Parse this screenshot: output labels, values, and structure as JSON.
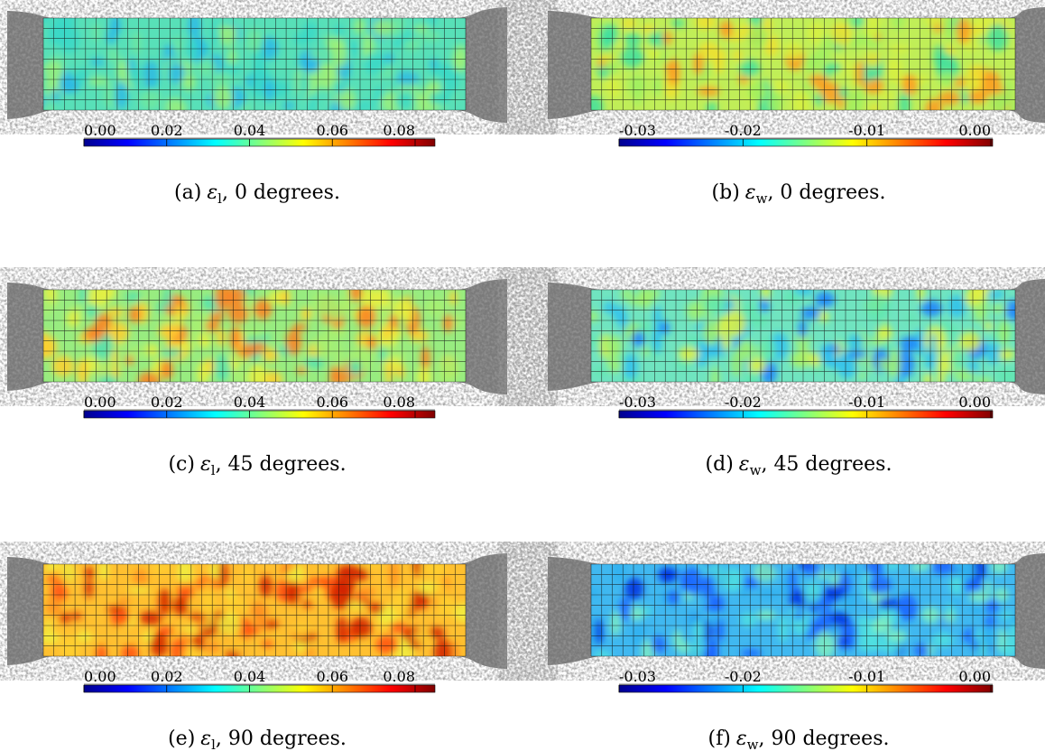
{
  "panels": [
    {
      "ticks": [
        "0.00",
        "0.02",
        "0.04",
        "0.06",
        "0.08"
      ],
      "caption": {
        "label": "(a)",
        "symbol": "ε",
        "subscript": "l",
        "text": ", 0 degrees."
      }
    },
    {
      "ticks": [
        "-0.03",
        "-0.02",
        "-0.01",
        "0.00"
      ],
      "caption": {
        "label": "(b)",
        "symbol": "ε",
        "subscript": "w",
        "text": ", 0 degrees."
      }
    },
    {
      "ticks": [
        "0.00",
        "0.02",
        "0.04",
        "0.06",
        "0.08"
      ],
      "caption": {
        "label": "(c)",
        "symbol": "ε",
        "subscript": "l",
        "text": ", 45 degrees."
      }
    },
    {
      "ticks": [
        "-0.03",
        "-0.02",
        "-0.01",
        "0.00"
      ],
      "caption": {
        "label": "(d)",
        "symbol": "ε",
        "subscript": "w",
        "text": ", 45 degrees."
      }
    },
    {
      "ticks": [
        "0.00",
        "0.02",
        "0.04",
        "0.06",
        "0.08"
      ],
      "caption": {
        "label": "(e)",
        "symbol": "ε",
        "subscript": "l",
        "text": ", 90 degrees."
      }
    },
    {
      "ticks": [
        "-0.03",
        "-0.02",
        "-0.01",
        "0.00"
      ],
      "caption": {
        "label": "(f)",
        "symbol": "ε",
        "subscript": "w",
        "text": ", 90 degrees."
      }
    }
  ]
}
